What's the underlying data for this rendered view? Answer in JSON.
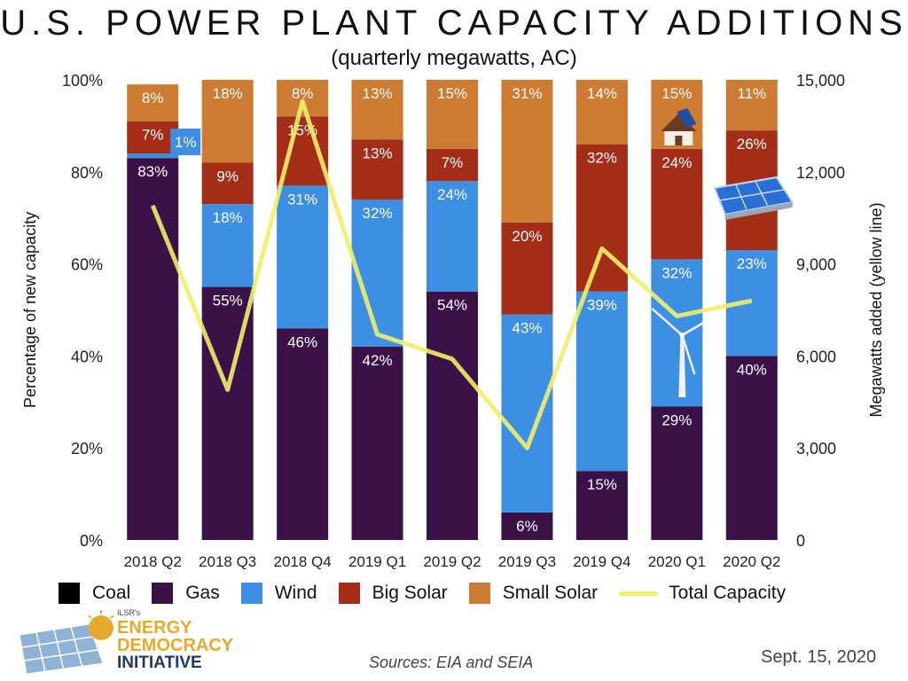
{
  "colors": {
    "coal": "#000000",
    "gas": "#3a1248",
    "wind": "#3d8fe3",
    "big_solar": "#a32d17",
    "small_solar": "#cd7a33",
    "total_line": "#f0f06a"
  },
  "chart_data": {
    "type": "bar",
    "stacked": true,
    "title": "U.S. POWER PLANT CAPACITY ADDITIONS",
    "subtitle": "(quarterly megawatts, AC)",
    "ylabel": "Percentage of new capacity",
    "y2label": "Megawatts added (yellow line)",
    "ylim": [
      0,
      100
    ],
    "y2lim": [
      0,
      15000
    ],
    "yticks": [
      "0%",
      "20%",
      "40%",
      "60%",
      "80%",
      "100%"
    ],
    "y2ticks": [
      "0",
      "3,000",
      "6,000",
      "9,000",
      "12,000",
      "15,000"
    ],
    "categories": [
      "2018 Q2",
      "2018 Q3",
      "2018 Q4",
      "2019 Q1",
      "2019 Q2",
      "2019 Q3",
      "2019 Q4",
      "2020 Q1",
      "2020 Q2"
    ],
    "series": [
      {
        "name": "Coal",
        "key": "coal",
        "values": [
          0,
          0,
          0,
          0,
          0,
          0,
          0,
          0,
          0
        ],
        "labels": [
          "",
          "",
          "",
          "",
          "",
          "",
          "",
          "",
          ""
        ]
      },
      {
        "name": "Gas",
        "key": "gas",
        "values": [
          83,
          55,
          46,
          42,
          54,
          6,
          15,
          29,
          40
        ],
        "labels": [
          "83%",
          "55%",
          "46%",
          "42%",
          "54%",
          "6%",
          "15%",
          "29%",
          "40%"
        ]
      },
      {
        "name": "Wind",
        "key": "wind",
        "values": [
          1,
          18,
          31,
          32,
          24,
          43,
          39,
          32,
          23
        ],
        "labels": [
          "1%",
          "18%",
          "31%",
          "32%",
          "24%",
          "43%",
          "39%",
          "32%",
          "23%"
        ]
      },
      {
        "name": "Big Solar",
        "key": "big_solar",
        "values": [
          7,
          9,
          15,
          13,
          7,
          20,
          32,
          24,
          26
        ],
        "labels": [
          "7%",
          "9%",
          "15%",
          "13%",
          "7%",
          "20%",
          "32%",
          "24%",
          "26%"
        ]
      },
      {
        "name": "Small Solar",
        "key": "small_solar",
        "values": [
          8,
          18,
          8,
          13,
          15,
          31,
          14,
          15,
          11
        ],
        "labels": [
          "8%",
          "18%",
          "8%",
          "13%",
          "15%",
          "31%",
          "14%",
          "15%",
          "11%"
        ]
      }
    ],
    "line": {
      "name": "Total Capacity",
      "axis": "right",
      "values": [
        10900,
        4900,
        14300,
        6700,
        5900,
        3000,
        9500,
        7300,
        7800
      ]
    },
    "legend": [
      "Coal",
      "Gas",
      "Wind",
      "Big Solar",
      "Small Solar",
      "Total Capacity"
    ],
    "legend_position": "bottom",
    "grid": false
  },
  "logo": {
    "brand": "ILSR's",
    "line1": "ENERGY",
    "line2": "DEMOCRACY",
    "line3": "INITIATIVE"
  },
  "source": "Sources: EIA and SEIA",
  "date": "Sept. 15, 2020"
}
